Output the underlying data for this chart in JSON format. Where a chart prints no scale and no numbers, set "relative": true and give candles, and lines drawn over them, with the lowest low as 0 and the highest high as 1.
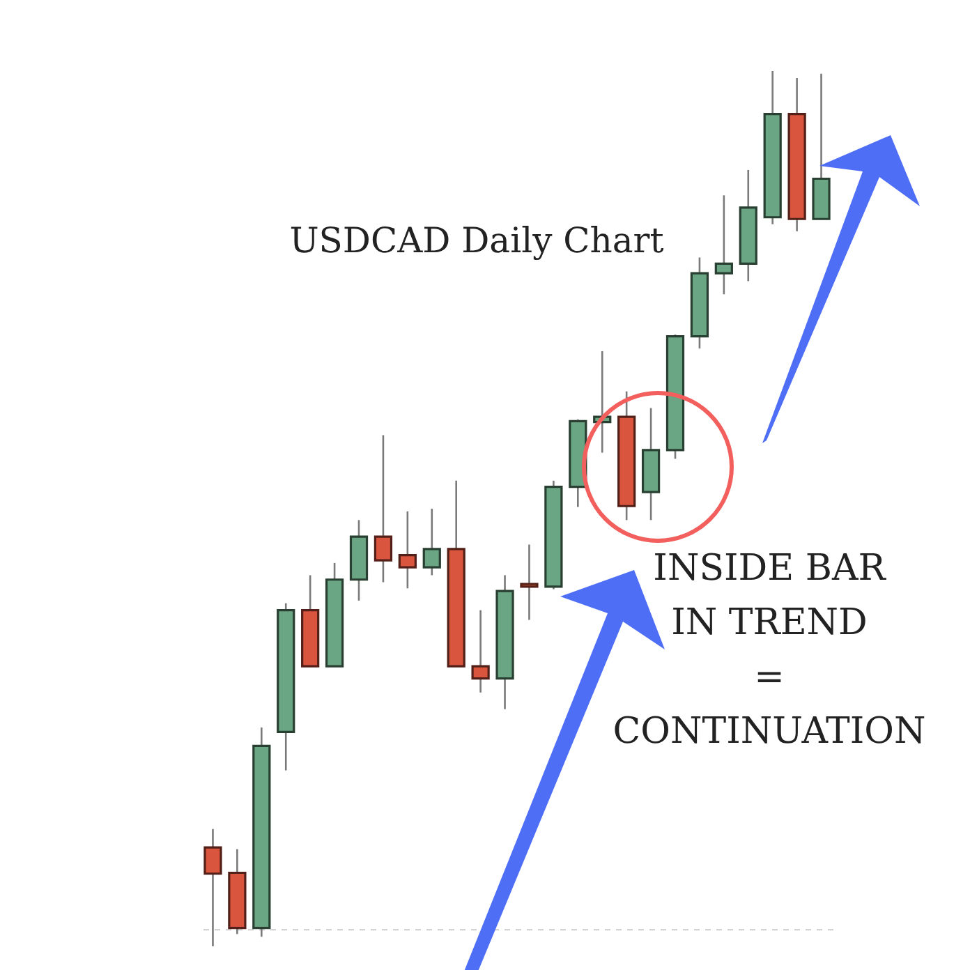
{
  "chart_data": {
    "type": "candlestick",
    "title": "USDCAD Daily Chart",
    "relative": true,
    "annotations": [
      "INSIDE BAR\nIN TREND\n=\nCONTINUATION"
    ],
    "categories": [
      null,
      null,
      null,
      null,
      null,
      null,
      null,
      null,
      null,
      null,
      null,
      null,
      null,
      null,
      null,
      null,
      null,
      null,
      null,
      null,
      null,
      null,
      null,
      null,
      null,
      null
    ],
    "ohlc": [
      [
        0.113,
        0.134,
        0,
        0.083
      ],
      [
        0.084,
        0.111,
        0.014,
        0.021
      ],
      [
        0.021,
        0.25,
        0.011,
        0.229
      ],
      [
        0.245,
        0.392,
        0.201,
        0.384
      ],
      [
        0.384,
        0.424,
        0.32,
        0.32
      ],
      [
        0.32,
        0.438,
        0.32,
        0.419
      ],
      [
        0.419,
        0.487,
        0.395,
        0.468
      ],
      [
        0.468,
        0.584,
        0.416,
        0.441
      ],
      [
        0.447,
        0.497,
        0.409,
        0.433
      ],
      [
        0.433,
        0.5,
        0.424,
        0.454
      ],
      [
        0.454,
        0.532,
        0.32,
        0.32
      ],
      [
        0.32,
        0.384,
        0.29,
        0.306
      ],
      [
        0.306,
        0.424,
        0.271,
        0.406
      ],
      [
        0.414,
        0.459,
        0.373,
        0.411
      ],
      [
        0.411,
        0.532,
        0.408,
        0.525
      ],
      [
        0.525,
        0.602,
        0.502,
        0.6
      ],
      [
        0.599,
        0.68,
        0.564,
        0.605
      ],
      [
        0.605,
        0.634,
        0.487,
        0.503
      ],
      [
        0.519,
        0.615,
        0.487,
        0.567
      ],
      [
        0.567,
        0.699,
        0.557,
        0.697
      ],
      [
        0.697,
        0.787,
        0.683,
        0.769
      ],
      [
        0.769,
        0.858,
        0.745,
        0.78
      ],
      [
        0.78,
        0.887,
        0.76,
        0.844
      ],
      [
        0.833,
        1,
        0.825,
        0.951
      ],
      [
        0.951,
        0.992,
        0.817,
        0.831
      ],
      [
        0.831,
        0.997,
        0.831,
        0.877
      ]
    ],
    "colors": [
      "#d9553e",
      "#d9553e",
      "#6aa683",
      "#6aa683",
      "#d9553e",
      "#6aa683",
      "#6aa683",
      "#d9553e",
      "#d9553e",
      "#6aa683",
      "#d9553e",
      "#d9553e",
      "#6aa683",
      "#d9553e",
      "#6aa683",
      "#6aa683",
      "#6aa683",
      "#d9553e",
      "#6aa683",
      "#6aa683",
      "#6aa683",
      "#6aa683",
      "#6aa683",
      "#6aa683",
      "#d9553e",
      "#6aa683"
    ],
    "ref_lines": [
      {
        "axis": "y",
        "value": 0.019,
        "color": "#cccccc",
        "line_style": "dashed"
      }
    ]
  }
}
